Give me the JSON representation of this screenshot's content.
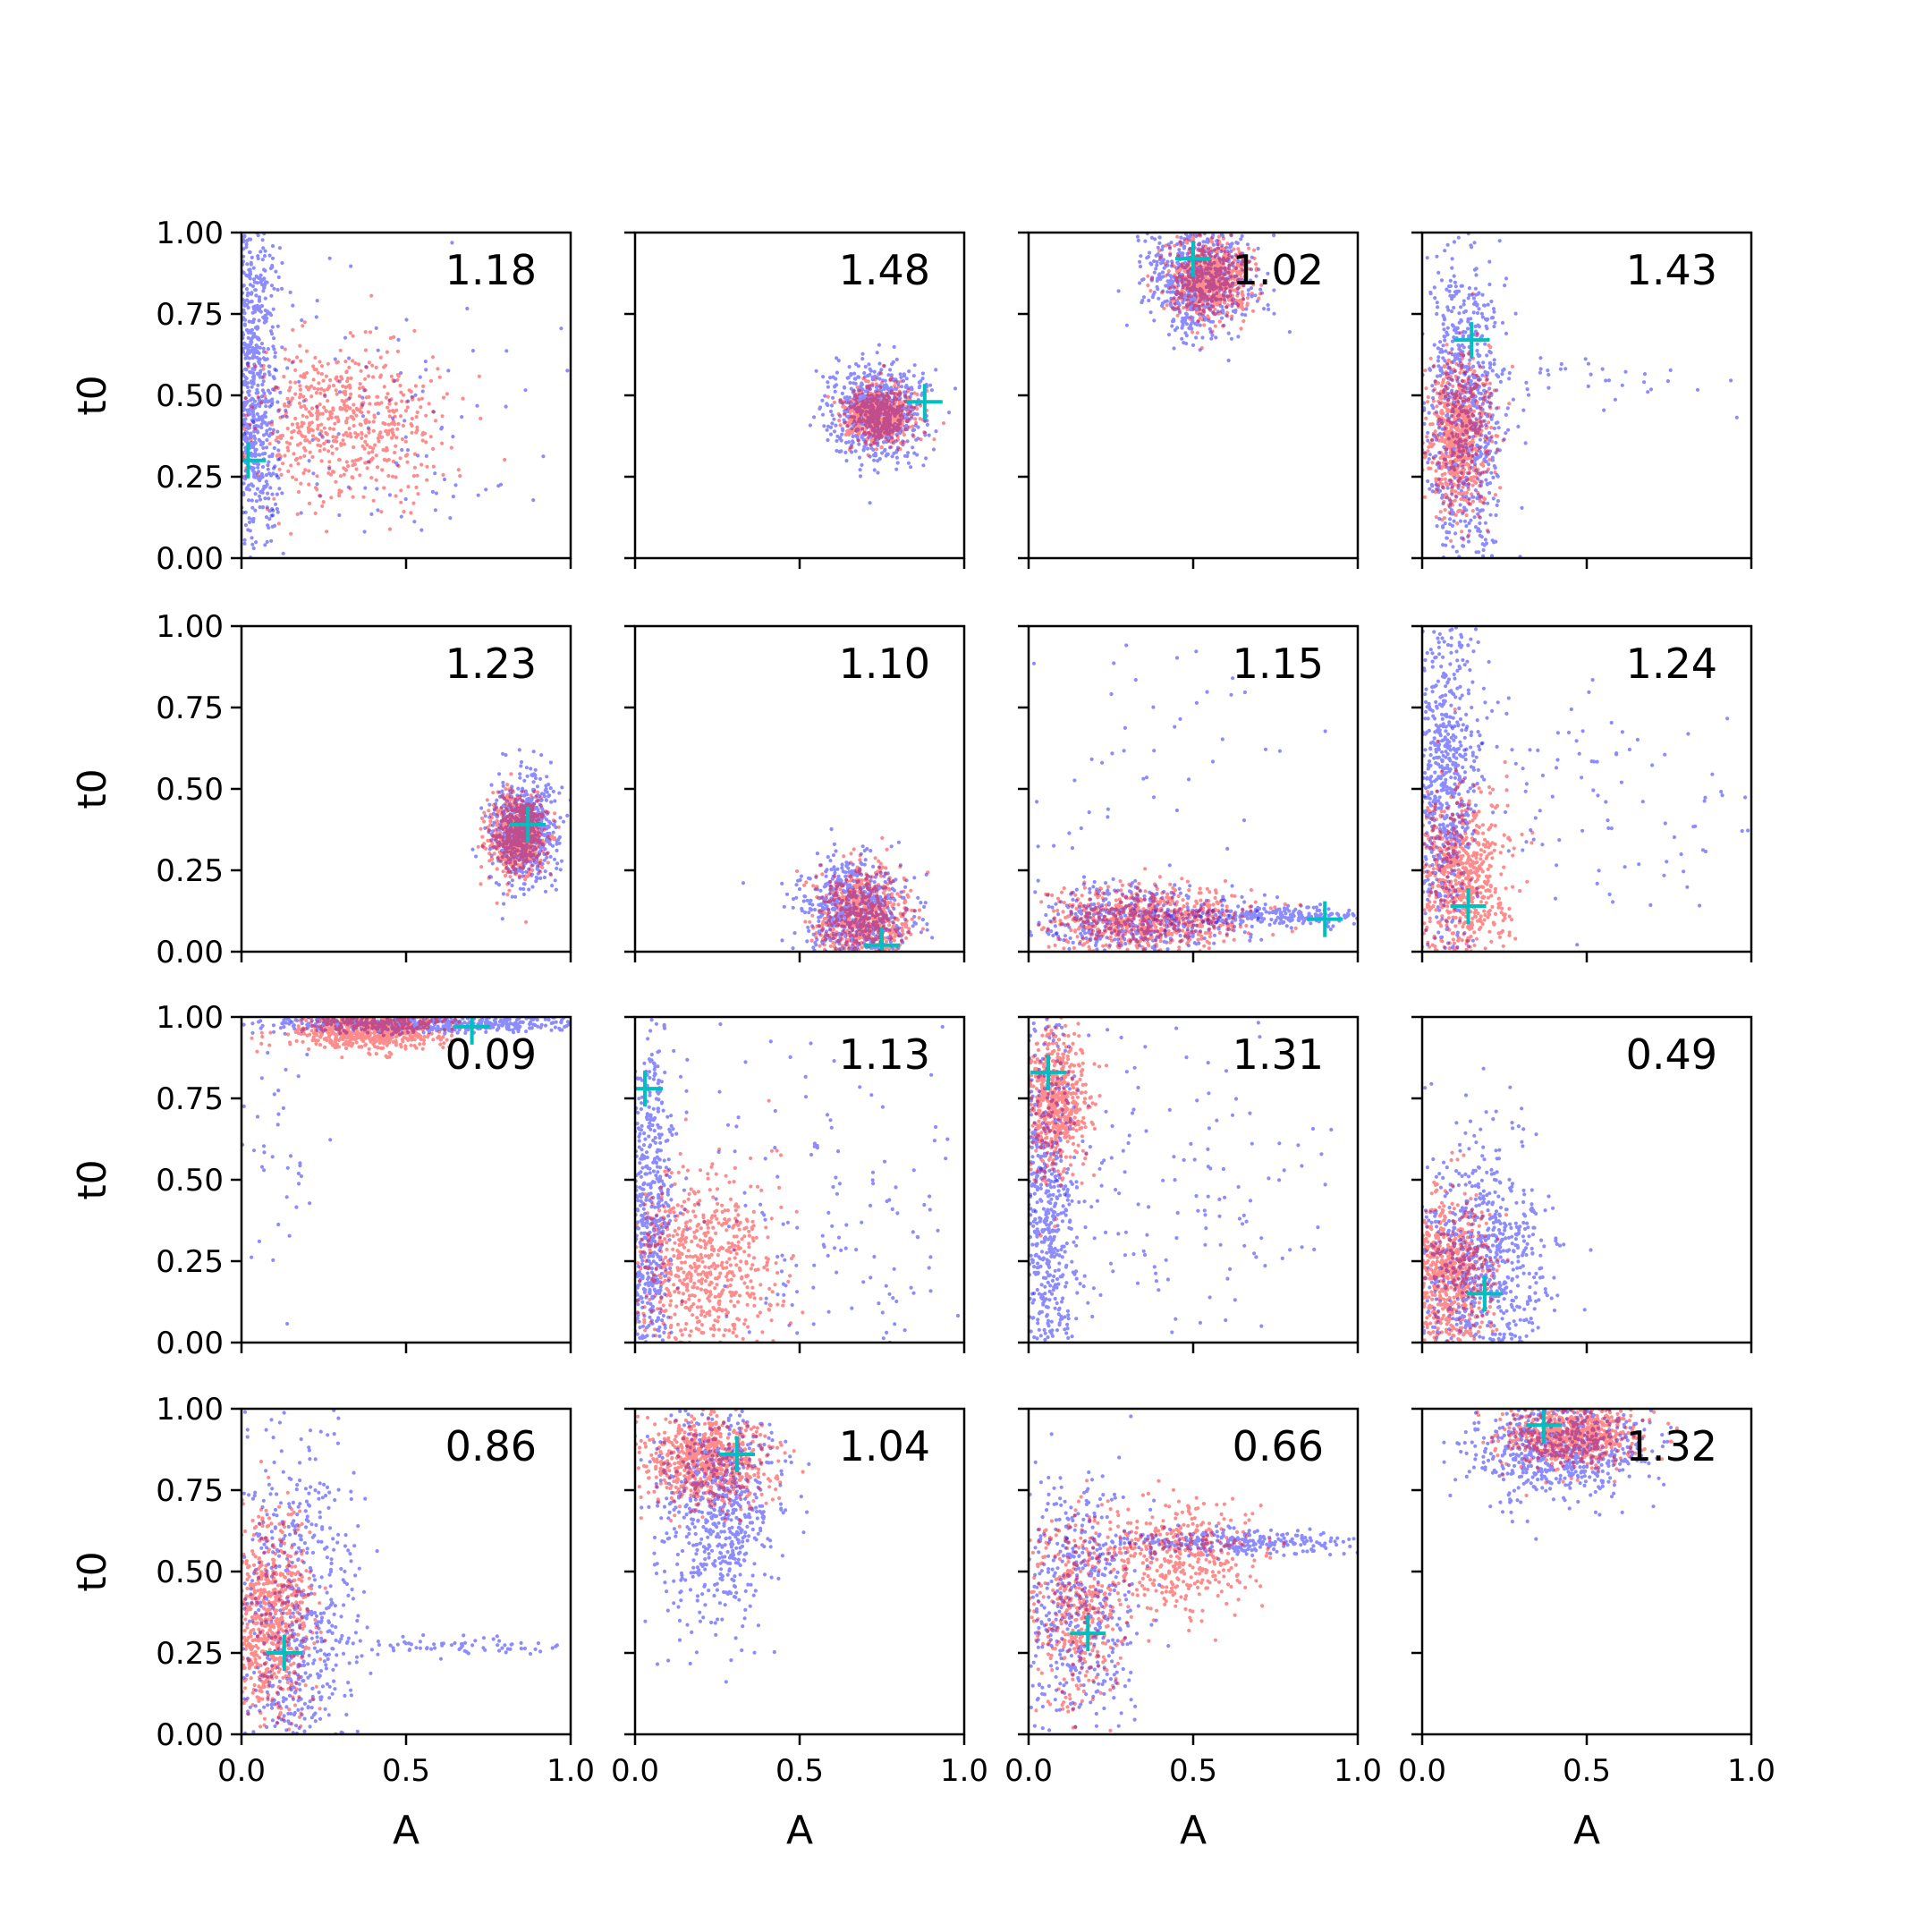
{
  "figure": {
    "rows": 4,
    "cols": 4
  },
  "chart_data": {
    "type": "scatter",
    "layout": "4x4 grid of scatter panels, shared axes",
    "xlabel": "A",
    "ylabel": "t0",
    "xlim": [
      0,
      1
    ],
    "ylim": [
      0,
      1
    ],
    "xticks": [
      "0.0",
      "0.5",
      "1.0"
    ],
    "yticks": [
      "0.00",
      "0.25",
      "0.50",
      "0.75",
      "1.00"
    ],
    "grid": false,
    "series_colors": {
      "blue_points": "#0000ff",
      "red_points": "#ff0000",
      "marker": "#00bfbf"
    },
    "panels": [
      {
        "label": "1.18",
        "marker": [
          0.02,
          0.3
        ],
        "red": [
          {
            "cx": 0.3,
            "cy": 0.42,
            "sx": 0.15,
            "sy": 0.13,
            "n": 600
          }
        ],
        "blue": [
          {
            "cx": 0.03,
            "cy": 0.5,
            "sx": 0.04,
            "sy": 0.3,
            "n": 900
          },
          {
            "cx": 0.4,
            "cy": 0.45,
            "sx": 0.3,
            "sy": 0.25,
            "n": 150
          }
        ]
      },
      {
        "label": "1.48",
        "marker": [
          0.88,
          0.48
        ],
        "red": [
          {
            "cx": 0.74,
            "cy": 0.44,
            "sx": 0.05,
            "sy": 0.04,
            "n": 700
          }
        ],
        "blue": [
          {
            "cx": 0.74,
            "cy": 0.45,
            "sx": 0.07,
            "sy": 0.07,
            "n": 700
          }
        ]
      },
      {
        "label": "1.02",
        "marker": [
          0.5,
          0.92
        ],
        "red": [
          {
            "cx": 0.55,
            "cy": 0.86,
            "sx": 0.06,
            "sy": 0.06,
            "n": 700
          }
        ],
        "blue": [
          {
            "cx": 0.52,
            "cy": 0.86,
            "sx": 0.08,
            "sy": 0.09,
            "n": 700
          }
        ]
      },
      {
        "label": "1.43",
        "marker": [
          0.15,
          0.67
        ],
        "red": [
          {
            "cx": 0.11,
            "cy": 0.38,
            "sx": 0.05,
            "sy": 0.12,
            "n": 700
          }
        ],
        "blue": [
          {
            "cx": 0.13,
            "cy": 0.45,
            "sx": 0.06,
            "sy": 0.25,
            "n": 800
          },
          {
            "cx": 0.5,
            "cy": 0.55,
            "sx": 0.25,
            "sy": 0.05,
            "n": 40
          }
        ]
      },
      {
        "label": "1.23",
        "marker": [
          0.87,
          0.39
        ],
        "red": [
          {
            "cx": 0.84,
            "cy": 0.36,
            "sx": 0.04,
            "sy": 0.06,
            "n": 700
          }
        ],
        "blue": [
          {
            "cx": 0.85,
            "cy": 0.37,
            "sx": 0.05,
            "sy": 0.08,
            "n": 700
          }
        ]
      },
      {
        "label": "1.10",
        "marker": [
          0.75,
          0.02
        ],
        "red": [
          {
            "cx": 0.69,
            "cy": 0.11,
            "sx": 0.07,
            "sy": 0.07,
            "n": 700
          }
        ],
        "blue": [
          {
            "cx": 0.67,
            "cy": 0.12,
            "sx": 0.08,
            "sy": 0.08,
            "n": 700
          }
        ]
      },
      {
        "label": "1.15",
        "marker": [
          0.9,
          0.1
        ],
        "red": [
          {
            "cx": 0.35,
            "cy": 0.1,
            "sx": 0.15,
            "sy": 0.05,
            "n": 700
          }
        ],
        "blue": [
          {
            "cx": 0.3,
            "cy": 0.1,
            "sx": 0.15,
            "sy": 0.05,
            "n": 500
          },
          {
            "cx": 0.75,
            "cy": 0.11,
            "sx": 0.15,
            "sy": 0.015,
            "n": 250
          },
          {
            "cx": 0.3,
            "cy": 0.55,
            "sx": 0.25,
            "sy": 0.3,
            "n": 70
          }
        ]
      },
      {
        "label": "1.24",
        "marker": [
          0.14,
          0.14
        ],
        "red": [
          {
            "cx": 0.12,
            "cy": 0.22,
            "sx": 0.07,
            "sy": 0.13,
            "n": 700
          }
        ],
        "blue": [
          {
            "cx": 0.07,
            "cy": 0.55,
            "sx": 0.05,
            "sy": 0.3,
            "n": 700
          },
          {
            "cx": 0.5,
            "cy": 0.5,
            "sx": 0.3,
            "sy": 0.2,
            "n": 120
          }
        ]
      },
      {
        "label": "0.09",
        "marker": [
          0.7,
          0.97
        ],
        "red": [
          {
            "cx": 0.38,
            "cy": 0.96,
            "sx": 0.12,
            "sy": 0.03,
            "n": 700
          }
        ],
        "blue": [
          {
            "cx": 0.55,
            "cy": 0.98,
            "sx": 0.25,
            "sy": 0.015,
            "n": 600
          },
          {
            "cx": 0.12,
            "cy": 0.6,
            "sx": 0.05,
            "sy": 0.25,
            "n": 40
          }
        ]
      },
      {
        "label": "1.13",
        "marker": [
          0.03,
          0.78
        ],
        "red": [
          {
            "cx": 0.2,
            "cy": 0.22,
            "sx": 0.12,
            "sy": 0.14,
            "n": 700
          }
        ],
        "blue": [
          {
            "cx": 0.04,
            "cy": 0.4,
            "sx": 0.04,
            "sy": 0.3,
            "n": 700
          },
          {
            "cx": 0.55,
            "cy": 0.35,
            "sx": 0.25,
            "sy": 0.25,
            "n": 150
          }
        ]
      },
      {
        "label": "1.31",
        "marker": [
          0.06,
          0.83
        ],
        "red": [
          {
            "cx": 0.08,
            "cy": 0.75,
            "sx": 0.05,
            "sy": 0.12,
            "n": 600
          }
        ],
        "blue": [
          {
            "cx": 0.05,
            "cy": 0.4,
            "sx": 0.05,
            "sy": 0.3,
            "n": 700
          },
          {
            "cx": 0.45,
            "cy": 0.45,
            "sx": 0.28,
            "sy": 0.28,
            "n": 150
          }
        ]
      },
      {
        "label": "0.49",
        "marker": [
          0.19,
          0.15
        ],
        "red": [
          {
            "cx": 0.08,
            "cy": 0.2,
            "sx": 0.07,
            "sy": 0.12,
            "n": 700
          }
        ],
        "blue": [
          {
            "cx": 0.18,
            "cy": 0.25,
            "sx": 0.1,
            "sy": 0.2,
            "n": 800
          }
        ]
      },
      {
        "label": "0.86",
        "marker": [
          0.13,
          0.25
        ],
        "red": [
          {
            "cx": 0.09,
            "cy": 0.35,
            "sx": 0.06,
            "sy": 0.16,
            "n": 700
          }
        ],
        "blue": [
          {
            "cx": 0.15,
            "cy": 0.35,
            "sx": 0.1,
            "sy": 0.3,
            "n": 700
          },
          {
            "cx": 0.7,
            "cy": 0.27,
            "sx": 0.2,
            "sy": 0.015,
            "n": 80
          }
        ]
      },
      {
        "label": "1.04",
        "marker": [
          0.31,
          0.86
        ],
        "red": [
          {
            "cx": 0.22,
            "cy": 0.84,
            "sx": 0.1,
            "sy": 0.07,
            "n": 700
          }
        ],
        "blue": [
          {
            "cx": 0.25,
            "cy": 0.7,
            "sx": 0.09,
            "sy": 0.18,
            "n": 700
          }
        ]
      },
      {
        "label": "0.66",
        "marker": [
          0.18,
          0.31
        ],
        "red": [
          {
            "cx": 0.15,
            "cy": 0.38,
            "sx": 0.07,
            "sy": 0.15,
            "n": 400
          },
          {
            "cx": 0.45,
            "cy": 0.55,
            "sx": 0.12,
            "sy": 0.08,
            "n": 400
          }
        ],
        "blue": [
          {
            "cx": 0.15,
            "cy": 0.4,
            "sx": 0.09,
            "sy": 0.2,
            "n": 500
          },
          {
            "cx": 0.6,
            "cy": 0.59,
            "sx": 0.2,
            "sy": 0.02,
            "n": 300
          }
        ]
      },
      {
        "label": "1.32",
        "marker": [
          0.37,
          0.95
        ],
        "red": [
          {
            "cx": 0.45,
            "cy": 0.92,
            "sx": 0.1,
            "sy": 0.05,
            "n": 700
          }
        ],
        "blue": [
          {
            "cx": 0.42,
            "cy": 0.88,
            "sx": 0.13,
            "sy": 0.08,
            "n": 700
          }
        ]
      }
    ]
  }
}
